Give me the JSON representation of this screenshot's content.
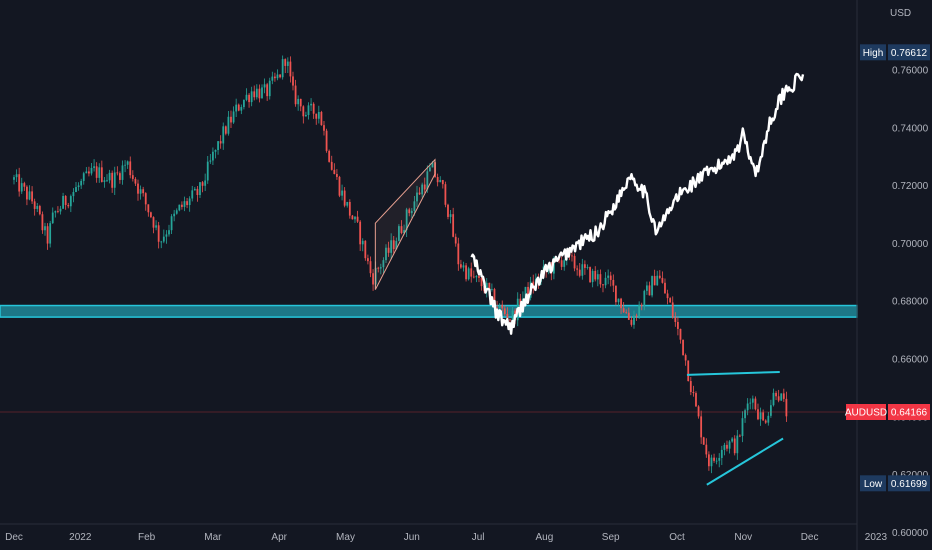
{
  "chart_data": {
    "type": "line",
    "currency": "USD",
    "ylim": [
      0.6,
      0.776
    ],
    "y_ticks": [
      0.6,
      0.62,
      0.64,
      0.66,
      0.68,
      0.7,
      0.72,
      0.74,
      0.76
    ],
    "y_tick_labels": [
      "0.60000",
      "0.62000",
      "0.64000",
      "0.66000",
      "0.68000",
      "0.70000",
      "0.72000",
      "0.74000",
      "0.76000"
    ],
    "x_ticks": [
      {
        "label": "Dec",
        "month": 0
      },
      {
        "label": "2022",
        "month": 1
      },
      {
        "label": "Feb",
        "month": 2
      },
      {
        "label": "Mar",
        "month": 3
      },
      {
        "label": "Apr",
        "month": 4
      },
      {
        "label": "May",
        "month": 5
      },
      {
        "label": "Jun",
        "month": 6
      },
      {
        "label": "Jul",
        "month": 7
      },
      {
        "label": "Aug",
        "month": 8
      },
      {
        "label": "Sep",
        "month": 9
      },
      {
        "label": "Oct",
        "month": 10
      },
      {
        "label": "Nov",
        "month": 11
      },
      {
        "label": "Dec",
        "month": 12
      },
      {
        "label": "2023",
        "month": 13
      }
    ],
    "candles": [
      [
        0.0,
        0.722
      ],
      [
        0.3,
        0.714
      ],
      [
        0.5,
        0.701
      ],
      [
        0.6,
        0.71
      ],
      [
        0.9,
        0.718
      ],
      [
        1.2,
        0.725
      ],
      [
        1.5,
        0.722
      ],
      [
        1.7,
        0.728
      ],
      [
        1.9,
        0.718
      ],
      [
        2.1,
        0.708
      ],
      [
        2.2,
        0.701
      ],
      [
        2.5,
        0.712
      ],
      [
        2.8,
        0.718
      ],
      [
        3.0,
        0.73
      ],
      [
        3.2,
        0.74
      ],
      [
        3.4,
        0.748
      ],
      [
        3.6,
        0.753
      ],
      [
        3.8,
        0.752
      ],
      [
        4.0,
        0.758
      ],
      [
        4.1,
        0.765
      ],
      [
        4.2,
        0.752
      ],
      [
        4.4,
        0.745
      ],
      [
        4.6,
        0.746
      ],
      [
        4.8,
        0.726
      ],
      [
        5.0,
        0.714
      ],
      [
        5.2,
        0.704
      ],
      [
        5.4,
        0.688
      ],
      [
        5.7,
        0.699
      ],
      [
        6.0,
        0.713
      ],
      [
        6.3,
        0.726
      ],
      [
        6.5,
        0.717
      ],
      [
        6.7,
        0.694
      ],
      [
        6.9,
        0.688
      ],
      [
        7.1,
        0.685
      ],
      [
        7.3,
        0.678
      ],
      [
        7.5,
        0.674
      ],
      [
        7.7,
        0.682
      ],
      [
        8.0,
        0.69
      ],
      [
        8.3,
        0.695
      ],
      [
        8.6,
        0.69
      ],
      [
        9.0,
        0.686
      ],
      [
        9.3,
        0.673
      ],
      [
        9.6,
        0.685
      ],
      [
        9.7,
        0.69
      ],
      [
        9.9,
        0.678
      ],
      [
        10.1,
        0.663
      ],
      [
        10.3,
        0.641
      ],
      [
        10.5,
        0.623
      ],
      [
        10.7,
        0.631
      ],
      [
        10.9,
        0.63
      ],
      [
        11.1,
        0.648
      ],
      [
        11.3,
        0.638
      ],
      [
        11.5,
        0.65
      ],
      [
        11.65,
        0.64166
      ]
    ],
    "overlay_series": [
      [
        6.9,
        0.696
      ],
      [
        7.3,
        0.675
      ],
      [
        7.5,
        0.671
      ],
      [
        7.7,
        0.68
      ],
      [
        8.0,
        0.69
      ],
      [
        8.4,
        0.698
      ],
      [
        8.8,
        0.704
      ],
      [
        9.1,
        0.715
      ],
      [
        9.3,
        0.724
      ],
      [
        9.5,
        0.718
      ],
      [
        9.7,
        0.704
      ],
      [
        10.0,
        0.716
      ],
      [
        10.3,
        0.722
      ],
      [
        10.6,
        0.726
      ],
      [
        10.9,
        0.732
      ],
      [
        11.0,
        0.738
      ],
      [
        11.2,
        0.724
      ],
      [
        11.4,
        0.742
      ],
      [
        11.6,
        0.752
      ],
      [
        11.8,
        0.756
      ],
      [
        11.9,
        0.759
      ]
    ],
    "drawings": {
      "zone": {
        "low": 0.6745,
        "high": 0.6785,
        "color": "#26c6da"
      },
      "wedge_upper": [
        [
          10.15,
          0.6545
        ],
        [
          11.55,
          0.6555
        ]
      ],
      "wedge_lower": [
        [
          10.45,
          0.6165
        ],
        [
          11.6,
          0.6325
        ]
      ],
      "channel_lower": [
        [
          5.45,
          0.684
        ],
        [
          6.35,
          0.724
        ]
      ],
      "channel_upper": [
        [
          5.45,
          0.707
        ],
        [
          6.35,
          0.729
        ]
      ]
    },
    "price_tags": [
      {
        "label": "High",
        "value": 0.76612,
        "value_text": "0.76612",
        "color": "#1e3a5f"
      },
      {
        "label": "AUDUSD",
        "value": 0.64166,
        "value_text": "0.64166",
        "color": "#f23645"
      },
      {
        "label": "Low",
        "value": 0.61699,
        "value_text": "0.61699",
        "color": "#1e3a5f"
      }
    ],
    "colors": {
      "up": "#26a69a",
      "down": "#ef5350",
      "overlay": "#ffffff",
      "channel": "#e8a090"
    }
  }
}
